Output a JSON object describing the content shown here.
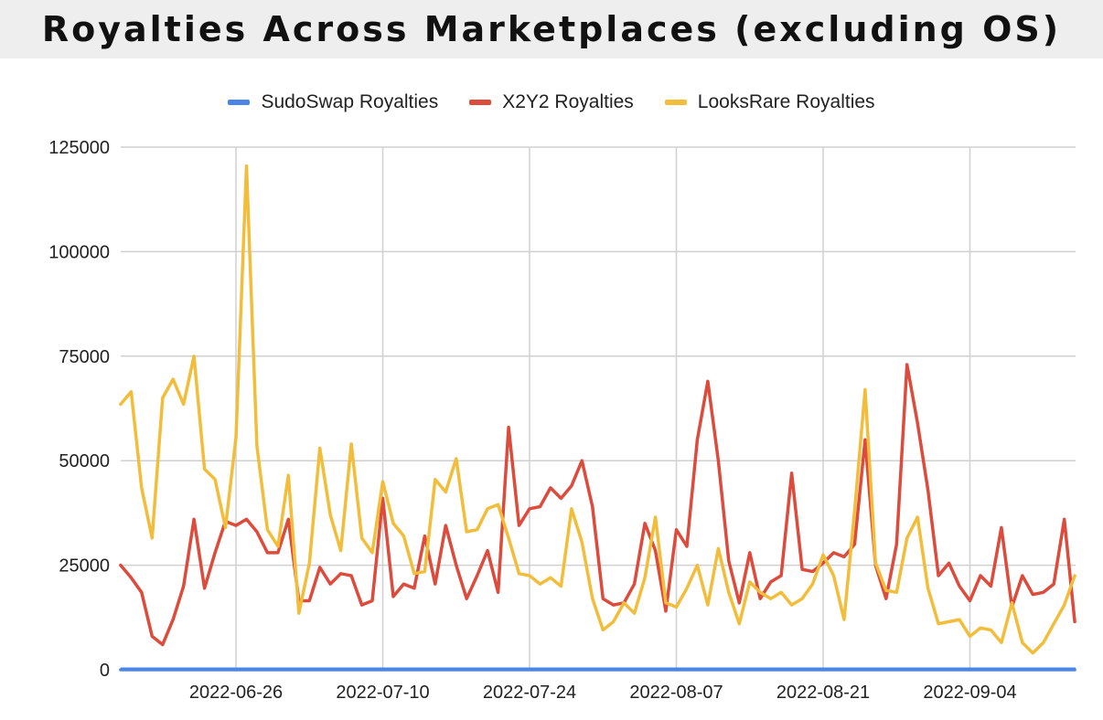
{
  "title": "Royalties Across Marketplaces (excluding OS)",
  "colors": {
    "sudoswap": "#4a86e8",
    "x2y2": "#dc4b3b",
    "looksrare": "#f3bd3c",
    "grid": "#d0d0d0",
    "axis": "#333333",
    "title_bg": "#eeeeee"
  },
  "legend": [
    {
      "name": "SudoSwap Royalties",
      "color": "#4a86e8"
    },
    {
      "name": "X2Y2 Royalties",
      "color": "#dc4b3b"
    },
    {
      "name": "LooksRare Royalties",
      "color": "#f3bd3c"
    }
  ],
  "chart_data": {
    "type": "line",
    "title": "Royalties Across Marketplaces (excluding OS)",
    "xlabel": "",
    "ylabel": "",
    "ylim": [
      0,
      125000
    ],
    "y_ticks": [
      0,
      25000,
      50000,
      75000,
      100000,
      125000
    ],
    "y_tick_labels": [
      "0",
      "25000",
      "50000",
      "75000",
      "100000",
      "125000"
    ],
    "x_start": "2022-06-15",
    "x_ticks": [
      "2022-06-26",
      "2022-07-10",
      "2022-07-24",
      "2022-08-07",
      "2022-08-21",
      "2022-09-04"
    ],
    "grid": true,
    "legend_position": "top",
    "series": [
      {
        "name": "SudoSwap Royalties",
        "color": "#4a86e8",
        "values": [
          0,
          0,
          0,
          0,
          0,
          0,
          0,
          0,
          0,
          0,
          0,
          0,
          0,
          0,
          0,
          0,
          0,
          0,
          0,
          0,
          0,
          0,
          0,
          0,
          0,
          0,
          0,
          0,
          0,
          0,
          0,
          0,
          0,
          0,
          0,
          0,
          0,
          0,
          0,
          0,
          0,
          0,
          0,
          0,
          0,
          0,
          0,
          0,
          0,
          0,
          0,
          0,
          0,
          0,
          0,
          0,
          0,
          0,
          0,
          0,
          0,
          0,
          0,
          0,
          0,
          0,
          0,
          0,
          0,
          0,
          0,
          0,
          0,
          0,
          0,
          0,
          0,
          0,
          0,
          0,
          0,
          0,
          0,
          0,
          0,
          0,
          0,
          0,
          0,
          0,
          0,
          0
        ]
      },
      {
        "name": "X2Y2 Royalties",
        "color": "#dc4b3b",
        "values": [
          25000,
          22000,
          18500,
          8000,
          6000,
          12000,
          20000,
          36000,
          19500,
          28000,
          35500,
          34500,
          36000,
          33000,
          28000,
          28000,
          36000,
          16500,
          16500,
          24500,
          20500,
          23000,
          22500,
          15500,
          16500,
          41000,
          17500,
          20500,
          19500,
          32000,
          20500,
          34500,
          25000,
          17000,
          22500,
          28500,
          18500,
          58000,
          34500,
          38500,
          39000,
          43500,
          41000,
          44000,
          50000,
          39000,
          17000,
          15500,
          16000,
          20500,
          35000,
          28500,
          14000,
          33500,
          29500,
          55000,
          69000,
          50000,
          26000,
          16000,
          28000,
          17000,
          21000,
          22500,
          47000,
          24000,
          23500,
          25500,
          28000,
          27000,
          30000,
          55000,
          25000,
          17000,
          30000,
          73000,
          59000,
          43000,
          22500,
          25500,
          20000,
          16500,
          22500,
          20000,
          34000,
          15000,
          22500,
          18000,
          18500,
          20500,
          36000,
          11500
        ]
      },
      {
        "name": "LooksRare Royalties",
        "color": "#f3bd3c",
        "values": [
          63500,
          66500,
          43500,
          31500,
          65000,
          69500,
          63500,
          75000,
          48000,
          45500,
          34000,
          55500,
          120500,
          53500,
          33500,
          29500,
          46500,
          13500,
          25500,
          53000,
          37000,
          28500,
          54000,
          31500,
          28000,
          45000,
          35000,
          32000,
          23000,
          23500,
          45500,
          42500,
          50500,
          33000,
          33500,
          38500,
          39500,
          31500,
          23000,
          22500,
          20500,
          22000,
          20000,
          38500,
          30500,
          17000,
          9500,
          11500,
          16000,
          13500,
          22000,
          36500,
          16000,
          15000,
          19500,
          25000,
          15500,
          29000,
          18500,
          11000,
          21000,
          18500,
          17000,
          18500,
          15500,
          17000,
          20500,
          27500,
          22500,
          12000,
          38000,
          67000,
          25500,
          19000,
          18500,
          31500,
          36500,
          19500,
          11000,
          11500,
          12000,
          8000,
          10000,
          9500,
          6500,
          16000,
          6500,
          4000,
          6500,
          11000,
          15500,
          22500
        ]
      }
    ]
  }
}
